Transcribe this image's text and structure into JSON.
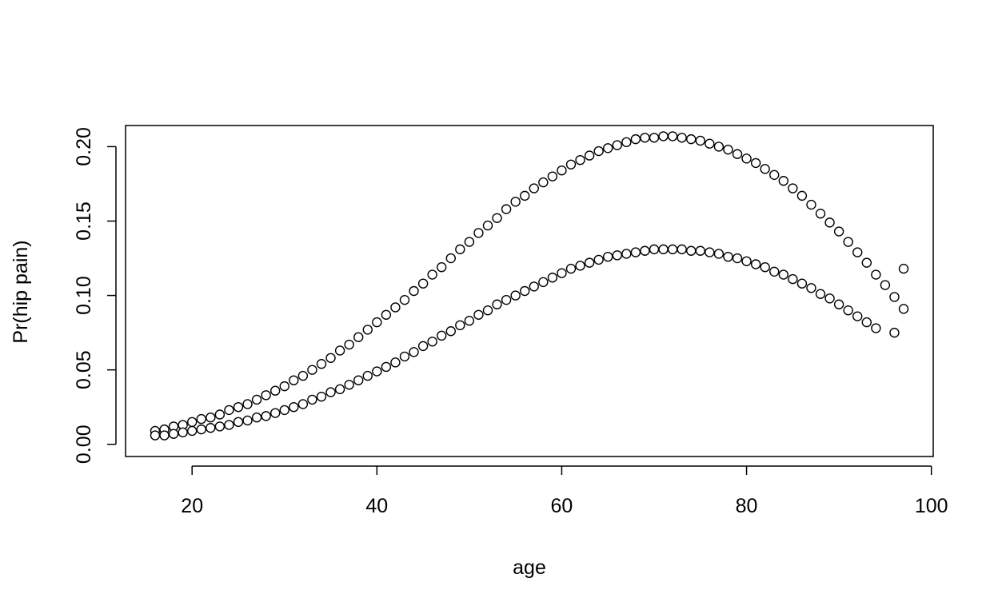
{
  "chart_data": {
    "type": "scatter",
    "title": "",
    "xlabel": "age",
    "ylabel": "Pr(hip pain)",
    "xlim": [
      12.8,
      100.2
    ],
    "ylim": [
      -0.0082,
      0.2142
    ],
    "xticks": [
      20,
      40,
      60,
      80,
      100
    ],
    "xtick_labels": [
      "20",
      "40",
      "60",
      "80",
      "100"
    ],
    "yticks": [
      0.0,
      0.05,
      0.1,
      0.15,
      0.2
    ],
    "ytick_labels": [
      "0.00",
      "0.05",
      "0.10",
      "0.15",
      "0.20"
    ],
    "grid": false,
    "marker": "open-circle",
    "series": [
      {
        "x": [
          16,
          17,
          18,
          19,
          20,
          21,
          22,
          23,
          24,
          25,
          26,
          27,
          28,
          29,
          30,
          31,
          32,
          33,
          34,
          35,
          36,
          37,
          38,
          39,
          40,
          41,
          42,
          43,
          44,
          45,
          46,
          47,
          48,
          49,
          50,
          51,
          52,
          53,
          54,
          55,
          56,
          57,
          58,
          59,
          60,
          61,
          62,
          63,
          64,
          65,
          66,
          67,
          68,
          69,
          70,
          71,
          72,
          73,
          74,
          75,
          76,
          77,
          78,
          79,
          80,
          81,
          82,
          83,
          84,
          85,
          86,
          87,
          88,
          89,
          90,
          91,
          92,
          93,
          94,
          95,
          96,
          97
        ],
        "values": [
          0.009,
          0.01,
          0.012,
          0.013,
          0.015,
          0.017,
          0.018,
          0.02,
          0.023,
          0.025,
          0.027,
          0.03,
          0.033,
          0.036,
          0.039,
          0.043,
          0.046,
          0.05,
          0.054,
          0.058,
          0.063,
          0.067,
          0.072,
          0.077,
          0.082,
          0.087,
          0.092,
          0.097,
          0.103,
          0.108,
          0.114,
          0.119,
          0.125,
          0.131,
          0.136,
          0.142,
          0.147,
          0.152,
          0.158,
          0.163,
          0.167,
          0.172,
          0.176,
          0.18,
          0.184,
          0.188,
          0.191,
          0.194,
          0.197,
          0.199,
          0.201,
          0.203,
          0.205,
          0.206,
          0.206,
          0.207,
          0.207,
          0.206,
          0.205,
          0.204,
          0.202,
          0.2,
          0.198,
          0.195,
          0.192,
          0.189,
          0.185,
          0.181,
          0.177,
          0.172,
          0.167,
          0.161,
          0.155,
          0.149,
          0.143,
          0.136,
          0.129,
          0.122,
          0.114,
          0.107,
          0.099,
          0.091
        ]
      },
      {
        "x": [
          16,
          17,
          18,
          19,
          20,
          21,
          22,
          23,
          24,
          25,
          26,
          27,
          28,
          29,
          30,
          31,
          32,
          33,
          34,
          35,
          36,
          37,
          38,
          39,
          40,
          41,
          42,
          43,
          44,
          45,
          46,
          47,
          48,
          49,
          50,
          51,
          52,
          53,
          54,
          55,
          56,
          57,
          58,
          59,
          60,
          61,
          62,
          63,
          64,
          65,
          66,
          67,
          68,
          69,
          70,
          71,
          72,
          73,
          74,
          75,
          76,
          77,
          78,
          79,
          80,
          81,
          82,
          83,
          84,
          85,
          86,
          87,
          88,
          89,
          90,
          91,
          92,
          93,
          94,
          96,
          97
        ],
        "values": [
          0.006,
          0.006,
          0.007,
          0.008,
          0.009,
          0.01,
          0.011,
          0.012,
          0.013,
          0.015,
          0.016,
          0.018,
          0.019,
          0.021,
          0.023,
          0.025,
          0.027,
          0.03,
          0.032,
          0.035,
          0.037,
          0.04,
          0.043,
          0.046,
          0.049,
          0.052,
          0.055,
          0.059,
          0.062,
          0.066,
          0.069,
          0.073,
          0.076,
          0.08,
          0.083,
          0.087,
          0.09,
          0.094,
          0.097,
          0.1,
          0.103,
          0.106,
          0.109,
          0.112,
          0.115,
          0.118,
          0.12,
          0.122,
          0.124,
          0.126,
          0.127,
          0.128,
          0.129,
          0.13,
          0.131,
          0.131,
          0.131,
          0.131,
          0.13,
          0.13,
          0.129,
          0.128,
          0.126,
          0.125,
          0.123,
          0.121,
          0.119,
          0.116,
          0.114,
          0.111,
          0.108,
          0.105,
          0.101,
          0.098,
          0.094,
          0.09,
          0.086,
          0.082,
          0.078,
          0.075,
          0.118
        ]
      }
    ]
  }
}
